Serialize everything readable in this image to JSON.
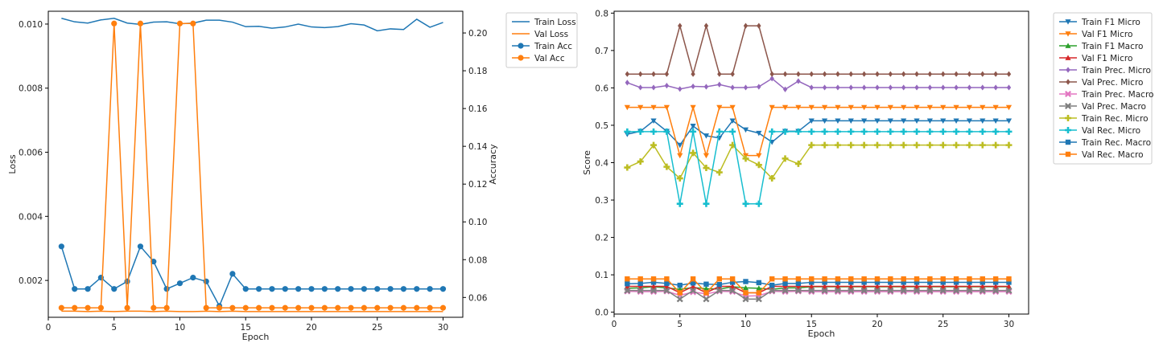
{
  "chart_data": [
    {
      "type": "line",
      "xlabel": "Epoch",
      "ylabel_left": "Loss",
      "ylabel_right": "Accuracy",
      "x": [
        1,
        2,
        3,
        4,
        5,
        6,
        7,
        8,
        9,
        10,
        11,
        12,
        13,
        14,
        15,
        16,
        17,
        18,
        19,
        20,
        21,
        22,
        23,
        24,
        25,
        26,
        27,
        28,
        29,
        30
      ],
      "xlim": [
        0.0,
        31.5
      ],
      "ylim_left": [
        0.00085,
        0.0104
      ],
      "ylim_right": [
        0.0495,
        0.2115
      ],
      "xticks": [
        0,
        5,
        10,
        15,
        20,
        25,
        30
      ],
      "yticks_left": [
        0.002,
        0.004,
        0.006,
        0.008,
        0.01
      ],
      "yticks_right": [
        0.06,
        0.08,
        0.1,
        0.12,
        0.14,
        0.16,
        0.18,
        0.2
      ],
      "legend_position": "outside-right",
      "series": [
        {
          "name": "Train Loss",
          "axis": "left",
          "color": "#1f77b4",
          "marker": "none",
          "values": [
            0.01018,
            0.01007,
            0.01003,
            0.01013,
            0.01018,
            0.01003,
            0.00999,
            0.01006,
            0.01007,
            0.01001,
            0.01003,
            0.01012,
            0.01012,
            0.01006,
            0.00992,
            0.00993,
            0.00987,
            0.00991,
            0.01,
            0.00991,
            0.00989,
            0.00992,
            0.01001,
            0.00997,
            0.00979,
            0.00985,
            0.00983,
            0.01015,
            0.0099,
            0.01005
          ]
        },
        {
          "name": "Val Loss",
          "axis": "left",
          "color": "#ff7f0e",
          "marker": "none",
          "values": [
            0.00104,
            0.00104,
            0.00103,
            0.00104,
            0.00103,
            0.00104,
            0.00104,
            0.00103,
            0.00104,
            0.00103,
            0.00103,
            0.00104,
            0.00103,
            0.00104,
            0.00103,
            0.00103,
            0.00103,
            0.00103,
            0.00103,
            0.00103,
            0.00103,
            0.00103,
            0.00103,
            0.00103,
            0.00103,
            0.00103,
            0.00103,
            0.00103,
            0.00103,
            0.00103
          ]
        },
        {
          "name": "Train Acc",
          "axis": "right",
          "color": "#1f77b4",
          "marker": "circle",
          "values": [
            0.087,
            0.0645,
            0.0645,
            0.0705,
            0.0645,
            0.0685,
            0.087,
            0.079,
            0.0645,
            0.0675,
            0.0705,
            0.0685,
            0.0555,
            0.0725,
            0.0645,
            0.0645,
            0.0645,
            0.0645,
            0.0645,
            0.0645,
            0.0645,
            0.0645,
            0.0645,
            0.0645,
            0.0645,
            0.0645,
            0.0645,
            0.0645,
            0.0645,
            0.0645
          ]
        },
        {
          "name": "Val Acc",
          "axis": "right",
          "color": "#ff7f0e",
          "marker": "circle",
          "values": [
            0.0545,
            0.0545,
            0.0545,
            0.0545,
            0.205,
            0.0545,
            0.205,
            0.0545,
            0.0545,
            0.205,
            0.205,
            0.0545,
            0.0545,
            0.0545,
            0.0545,
            0.0545,
            0.0545,
            0.0545,
            0.0545,
            0.0545,
            0.0545,
            0.0545,
            0.0545,
            0.0545,
            0.0545,
            0.0545,
            0.0545,
            0.0545,
            0.0545,
            0.0545
          ]
        }
      ]
    },
    {
      "type": "line",
      "xlabel": "Epoch",
      "ylabel": "Score",
      "x": [
        1,
        2,
        3,
        4,
        5,
        6,
        7,
        8,
        9,
        10,
        11,
        12,
        13,
        14,
        15,
        16,
        17,
        18,
        19,
        20,
        21,
        22,
        23,
        24,
        25,
        26,
        27,
        28,
        29,
        30
      ],
      "xlim": [
        0.0,
        31.5
      ],
      "ylim": [
        -0.005,
        0.805
      ],
      "xticks": [
        0,
        5,
        10,
        15,
        20,
        25,
        30
      ],
      "yticks": [
        0.0,
        0.1,
        0.2,
        0.3,
        0.4,
        0.5,
        0.6,
        0.7,
        0.8
      ],
      "legend_position": "outside-right",
      "series": [
        {
          "name": "Train F1 Micro",
          "color": "#1f77b4",
          "marker": "triangle-down",
          "values": [
            0.476,
            0.484,
            0.512,
            0.484,
            0.447,
            0.498,
            0.472,
            0.466,
            0.512,
            0.488,
            0.479,
            0.455,
            0.484,
            0.484,
            0.512,
            0.512,
            0.512,
            0.512,
            0.512,
            0.512,
            0.512,
            0.512,
            0.512,
            0.512,
            0.512,
            0.512,
            0.512,
            0.512,
            0.512,
            0.512
          ]
        },
        {
          "name": "Val F1 Micro",
          "color": "#ff7f0e",
          "marker": "triangle-down",
          "values": [
            0.548,
            0.548,
            0.548,
            0.548,
            0.419,
            0.548,
            0.419,
            0.548,
            0.548,
            0.419,
            0.419,
            0.548,
            0.548,
            0.548,
            0.548,
            0.548,
            0.548,
            0.548,
            0.548,
            0.548,
            0.548,
            0.548,
            0.548,
            0.548,
            0.548,
            0.548,
            0.548,
            0.548,
            0.548,
            0.548
          ]
        },
        {
          "name": "Train F1 Macro",
          "color": "#2ca02c",
          "marker": "triangle-up",
          "values": [
            0.064,
            0.065,
            0.068,
            0.065,
            0.061,
            0.066,
            0.063,
            0.062,
            0.068,
            0.065,
            0.064,
            0.061,
            0.065,
            0.065,
            0.068,
            0.068,
            0.068,
            0.068,
            0.068,
            0.068,
            0.068,
            0.068,
            0.068,
            0.068,
            0.068,
            0.068,
            0.068,
            0.068,
            0.068,
            0.068
          ]
        },
        {
          "name": "Val F1 Micro",
          "color": "#d62728",
          "marker": "triangle-up",
          "values": [
            0.069,
            0.069,
            0.069,
            0.069,
            0.052,
            0.069,
            0.052,
            0.069,
            0.069,
            0.052,
            0.052,
            0.069,
            0.069,
            0.069,
            0.069,
            0.069,
            0.069,
            0.069,
            0.069,
            0.069,
            0.069,
            0.069,
            0.069,
            0.069,
            0.069,
            0.069,
            0.069,
            0.069,
            0.069,
            0.069
          ]
        },
        {
          "name": "Train Prec. Micro",
          "color": "#9467bd",
          "marker": "diamond",
          "values": [
            0.614,
            0.601,
            0.601,
            0.606,
            0.597,
            0.604,
            0.603,
            0.609,
            0.601,
            0.601,
            0.603,
            0.625,
            0.596,
            0.618,
            0.601,
            0.601,
            0.601,
            0.601,
            0.601,
            0.601,
            0.601,
            0.601,
            0.601,
            0.601,
            0.601,
            0.601,
            0.601,
            0.601,
            0.601,
            0.601
          ]
        },
        {
          "name": "Val Prec. Micro",
          "color": "#8c564b",
          "marker": "diamond",
          "values": [
            0.637,
            0.637,
            0.637,
            0.637,
            0.766,
            0.637,
            0.766,
            0.637,
            0.637,
            0.766,
            0.766,
            0.637,
            0.637,
            0.637,
            0.637,
            0.637,
            0.637,
            0.637,
            0.637,
            0.637,
            0.637,
            0.637,
            0.637,
            0.637,
            0.637,
            0.637,
            0.637,
            0.637,
            0.637,
            0.637
          ]
        },
        {
          "name": "Train Prec. Macro",
          "color": "#e377c2",
          "marker": "x",
          "values": [
            0.056,
            0.055,
            0.055,
            0.056,
            0.045,
            0.054,
            0.049,
            0.056,
            0.055,
            0.043,
            0.044,
            0.056,
            0.055,
            0.056,
            0.055,
            0.055,
            0.055,
            0.055,
            0.055,
            0.055,
            0.055,
            0.055,
            0.055,
            0.055,
            0.055,
            0.055,
            0.055,
            0.055,
            0.055,
            0.055
          ]
        },
        {
          "name": "Val Prec. Macro",
          "color": "#7f7f7f",
          "marker": "x",
          "values": [
            0.058,
            0.058,
            0.058,
            0.058,
            0.035,
            0.058,
            0.035,
            0.058,
            0.058,
            0.035,
            0.035,
            0.058,
            0.058,
            0.058,
            0.058,
            0.058,
            0.058,
            0.058,
            0.058,
            0.058,
            0.058,
            0.058,
            0.058,
            0.058,
            0.058,
            0.058,
            0.058,
            0.058,
            0.058,
            0.058
          ]
        },
        {
          "name": "Train Rec. Micro",
          "color": "#bcbd22",
          "marker": "plus",
          "values": [
            0.387,
            0.403,
            0.447,
            0.389,
            0.358,
            0.426,
            0.386,
            0.374,
            0.447,
            0.411,
            0.394,
            0.358,
            0.411,
            0.397,
            0.447,
            0.447,
            0.447,
            0.447,
            0.447,
            0.447,
            0.447,
            0.447,
            0.447,
            0.447,
            0.447,
            0.447,
            0.447,
            0.447,
            0.447,
            0.447
          ]
        },
        {
          "name": "Val Rec. Micro",
          "color": "#17becf",
          "marker": "plus",
          "values": [
            0.483,
            0.483,
            0.483,
            0.483,
            0.29,
            0.483,
            0.29,
            0.483,
            0.483,
            0.29,
            0.29,
            0.483,
            0.483,
            0.483,
            0.483,
            0.483,
            0.483,
            0.483,
            0.483,
            0.483,
            0.483,
            0.483,
            0.483,
            0.483,
            0.483,
            0.483,
            0.483,
            0.483,
            0.483,
            0.483
          ]
        },
        {
          "name": "Train Rec. Macro",
          "color": "#1f77b4",
          "marker": "square",
          "values": [
            0.076,
            0.077,
            0.08,
            0.077,
            0.072,
            0.078,
            0.075,
            0.074,
            0.08,
            0.082,
            0.079,
            0.072,
            0.077,
            0.077,
            0.08,
            0.08,
            0.08,
            0.08,
            0.08,
            0.08,
            0.08,
            0.08,
            0.08,
            0.08,
            0.08,
            0.08,
            0.08,
            0.08,
            0.08,
            0.08
          ]
        },
        {
          "name": "Val Rec. Macro",
          "color": "#ff7f0e",
          "marker": "square",
          "values": [
            0.089,
            0.089,
            0.089,
            0.089,
            0.052,
            0.089,
            0.052,
            0.089,
            0.089,
            0.052,
            0.052,
            0.089,
            0.089,
            0.089,
            0.089,
            0.089,
            0.089,
            0.089,
            0.089,
            0.089,
            0.089,
            0.089,
            0.089,
            0.089,
            0.089,
            0.089,
            0.089,
            0.089,
            0.089,
            0.089
          ]
        }
      ]
    }
  ]
}
